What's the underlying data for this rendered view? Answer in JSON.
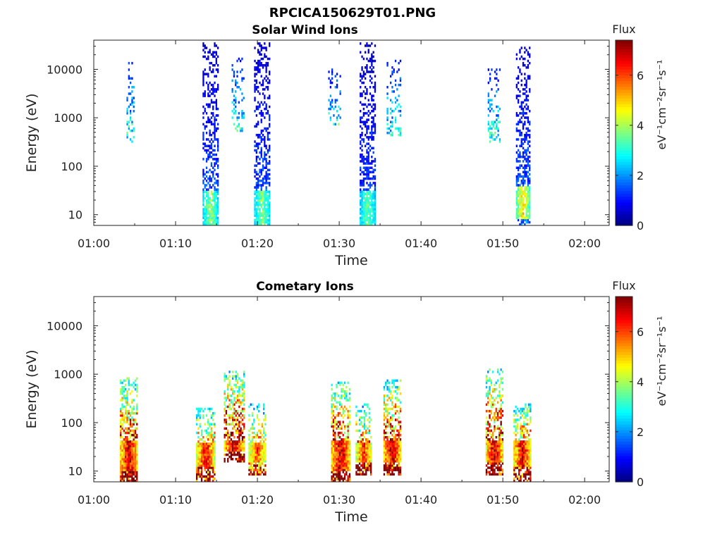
{
  "figure": {
    "title": "RPCICA150629T01.PNG"
  },
  "colormap": [
    "#00007f",
    "#0000ff",
    "#007fff",
    "#00ffff",
    "#7fff7f",
    "#ffff00",
    "#ff7f00",
    "#ff0000",
    "#7f0000"
  ],
  "chart_data": [
    {
      "type": "heatmap",
      "title": "Solar Wind Ions",
      "xlabel": "Time",
      "ylabel": "Energy (eV)",
      "x_range": [
        "01:00",
        "02:03"
      ],
      "x_ticks": [
        "01:00",
        "01:10",
        "01:20",
        "01:30",
        "01:40",
        "01:50",
        "02:00"
      ],
      "y_scale": "log",
      "y_range": [
        6,
        40000
      ],
      "y_ticks": [
        {
          "value": 10,
          "label": "10"
        },
        {
          "value": 100,
          "label": "100"
        },
        {
          "value": 1000,
          "label": "1000"
        },
        {
          "value": 10000,
          "label": "10000"
        }
      ],
      "colorbar": {
        "title": "Flux",
        "units": "eV⁻¹cm⁻²sr⁻¹s⁻¹",
        "range": [
          0,
          7.4
        ],
        "ticks": [
          0,
          2,
          4,
          6
        ]
      },
      "bursts": [
        {
          "t_min": 4.5,
          "width_min": 1.0,
          "e_low": 300,
          "e_high": 18000,
          "flux": 2.5,
          "density": 0.35,
          "core_e": [
            0,
            0
          ],
          "core_flux": 0
        },
        {
          "t_min": 14.3,
          "width_min": 2.0,
          "e_low": 6,
          "e_high": 35000,
          "flux": 1.3,
          "density": 0.55,
          "core_e": [
            6,
            30
          ],
          "core_flux": 3.8
        },
        {
          "t_min": 17.6,
          "width_min": 1.5,
          "e_low": 500,
          "e_high": 18000,
          "flux": 2.4,
          "density": 0.35,
          "core_e": [
            0,
            0
          ],
          "core_flux": 0
        },
        {
          "t_min": 20.6,
          "width_min": 2.0,
          "e_low": 6,
          "e_high": 35000,
          "flux": 1.3,
          "density": 0.6,
          "core_e": [
            6,
            30
          ],
          "core_flux": 3.8
        },
        {
          "t_min": 29.4,
          "width_min": 1.5,
          "e_low": 700,
          "e_high": 10000,
          "flux": 2.4,
          "density": 0.3,
          "core_e": [
            0,
            0
          ],
          "core_flux": 0
        },
        {
          "t_min": 33.5,
          "width_min": 2.0,
          "e_low": 6,
          "e_high": 35000,
          "flux": 1.2,
          "density": 0.6,
          "core_e": [
            6,
            30
          ],
          "core_flux": 3.5
        },
        {
          "t_min": 36.7,
          "width_min": 1.8,
          "e_low": 400,
          "e_high": 15000,
          "flux": 2.4,
          "density": 0.3,
          "core_e": [
            0,
            0
          ],
          "core_flux": 0
        },
        {
          "t_min": 48.9,
          "width_min": 1.5,
          "e_low": 300,
          "e_high": 10000,
          "flux": 2.5,
          "density": 0.3,
          "core_e": [
            0,
            0
          ],
          "core_flux": 0
        },
        {
          "t_min": 52.5,
          "width_min": 1.8,
          "e_low": 6,
          "e_high": 30000,
          "flux": 1.4,
          "density": 0.6,
          "core_e": [
            8,
            40
          ],
          "core_flux": 4.8
        }
      ]
    },
    {
      "type": "heatmap",
      "title": "Cometary Ions",
      "xlabel": "Time",
      "ylabel": "Energy (eV)",
      "x_range": [
        "01:00",
        "02:03"
      ],
      "x_ticks": [
        "01:00",
        "01:10",
        "01:20",
        "01:30",
        "01:40",
        "01:50",
        "02:00"
      ],
      "y_scale": "log",
      "y_range": [
        6,
        40000
      ],
      "y_ticks": [
        {
          "value": 10,
          "label": "10"
        },
        {
          "value": 100,
          "label": "100"
        },
        {
          "value": 1000,
          "label": "1000"
        },
        {
          "value": 10000,
          "label": "10000"
        }
      ],
      "colorbar": {
        "title": "Flux",
        "units": "eV⁻¹cm⁻²sr⁻¹s⁻¹",
        "range": [
          0,
          7.4
        ],
        "ticks": [
          0,
          2,
          4,
          6
        ]
      },
      "bursts": [
        {
          "t_min": 4.3,
          "width_min": 2.2,
          "e_low": 6,
          "e_high": 900,
          "flux": 7.0,
          "density": 0.85,
          "core_e": [
            10,
            45
          ],
          "core_flux": 7.0
        },
        {
          "t_min": 13.7,
          "width_min": 2.4,
          "e_low": 6,
          "e_high": 200,
          "flux": 6.5,
          "density": 0.7,
          "core_e": [
            12,
            40
          ],
          "core_flux": 6.5
        },
        {
          "t_min": 17.2,
          "width_min": 2.6,
          "e_low": 15,
          "e_high": 1200,
          "flux": 7.0,
          "density": 0.75,
          "core_e": [
            25,
            45
          ],
          "core_flux": 7.0
        },
        {
          "t_min": 20.0,
          "width_min": 2.2,
          "e_low": 8,
          "e_high": 250,
          "flux": 6.0,
          "density": 0.7,
          "core_e": [
            15,
            40
          ],
          "core_flux": 6.0
        },
        {
          "t_min": 30.2,
          "width_min": 2.4,
          "e_low": 6,
          "e_high": 700,
          "flux": 7.0,
          "density": 0.75,
          "core_e": [
            10,
            45
          ],
          "core_flux": 7.0
        },
        {
          "t_min": 33.0,
          "width_min": 2.0,
          "e_low": 8,
          "e_high": 250,
          "flux": 6.2,
          "density": 0.7,
          "core_e": [
            15,
            40
          ],
          "core_flux": 6.2
        },
        {
          "t_min": 36.5,
          "width_min": 2.2,
          "e_low": 8,
          "e_high": 800,
          "flux": 7.0,
          "density": 0.75,
          "core_e": [
            15,
            45
          ],
          "core_flux": 7.0
        },
        {
          "t_min": 49.0,
          "width_min": 2.2,
          "e_low": 8,
          "e_high": 1300,
          "flux": 7.0,
          "density": 0.75,
          "core_e": [
            15,
            45
          ],
          "core_flux": 7.0
        },
        {
          "t_min": 52.4,
          "width_min": 2.2,
          "e_low": 6,
          "e_high": 250,
          "flux": 6.8,
          "density": 0.75,
          "core_e": [
            12,
            45
          ],
          "core_flux": 6.8
        }
      ]
    }
  ]
}
